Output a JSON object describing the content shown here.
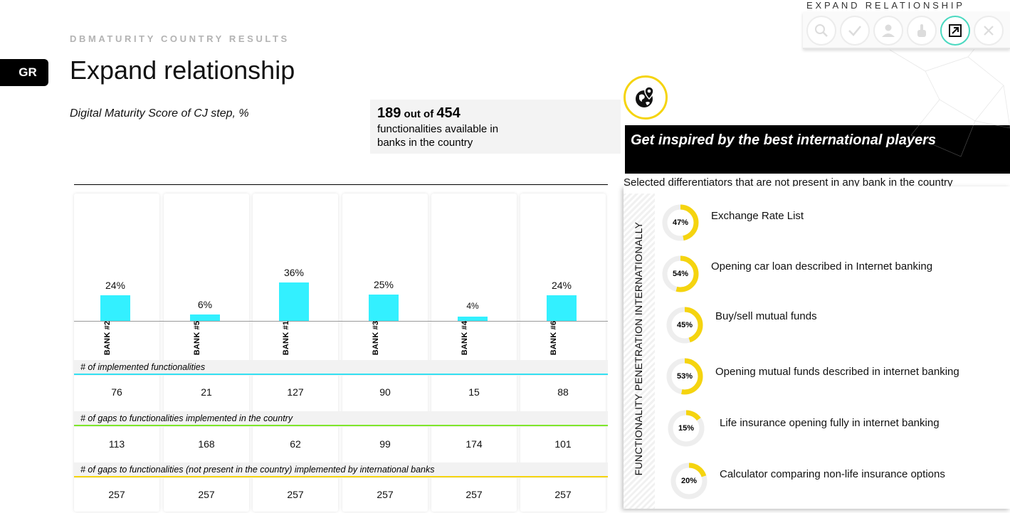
{
  "header": {
    "kicker": "DBMATURITY COUNTRY RESULTS",
    "country": "GR",
    "title": "Expand relationship",
    "subtitle": "Digital Maturity Score of CJ step, %"
  },
  "summary": {
    "available": "189",
    "out_of": "out of",
    "total": "454",
    "description": "functionalities available in banks in the country"
  },
  "chart_data": {
    "type": "bar",
    "title": "Digital Maturity Score of CJ step, %",
    "categories": [
      "BANK #2",
      "BANK #5",
      "BANK #1",
      "BANK #3",
      "BANK #4",
      "BANK #6"
    ],
    "values": [
      24,
      6,
      36,
      25,
      4,
      24
    ],
    "value_labels": [
      "24%",
      "6%",
      "36%",
      "25%",
      "4%",
      "24%"
    ],
    "ylim": [
      0,
      40
    ],
    "color": "#33f0ff"
  },
  "table": {
    "rows": [
      {
        "header": "# of implemented functionalities",
        "color": "#33e0f2",
        "values": [
          "76",
          "21",
          "127",
          "90",
          "15",
          "88"
        ]
      },
      {
        "header": "# of gaps to functionalities implemented in the country",
        "color": "#7ee62a",
        "values": [
          "113",
          "168",
          "62",
          "99",
          "174",
          "101"
        ]
      },
      {
        "header": "# of gaps to functionalities (not present in the country) implemented by international banks",
        "color": "#f5d40f",
        "values": [
          "257",
          "257",
          "257",
          "257",
          "257",
          "257"
        ]
      }
    ]
  },
  "panel": {
    "heading": "Get inspired by the best international players",
    "caption": "Selected differentiators that are not present in any bank in the country",
    "vertical_label": "FUNCTIONALITY PENETRATION INTERNATIONALLY",
    "accent": "#f5d40f",
    "items": [
      {
        "label": "Exchange Rate List",
        "pct": 47,
        "pct_label": "47%"
      },
      {
        "label": "Opening car loan described in Internet banking",
        "pct": 54,
        "pct_label": "54%"
      },
      {
        "label": "Buy/sell mutual funds",
        "pct": 45,
        "pct_label": "45%"
      },
      {
        "label": "Opening mutual funds described in internet banking",
        "pct": 53,
        "pct_label": "53%"
      },
      {
        "label": "Life insurance opening fully in internet banking",
        "pct": 15,
        "pct_label": "15%"
      },
      {
        "label": "Calculator comparing non-life insurance options",
        "pct": 20,
        "pct_label": "20%"
      }
    ]
  },
  "toolbar": {
    "title": "EXPAND RELATIONSHIP",
    "buttons": [
      {
        "icon": "search-icon"
      },
      {
        "icon": "check-icon"
      },
      {
        "icon": "user-icon"
      },
      {
        "icon": "pointer-icon"
      },
      {
        "icon": "expand-icon"
      },
      {
        "icon": "close-icon"
      }
    ],
    "active_color": "#4ad9c0"
  }
}
